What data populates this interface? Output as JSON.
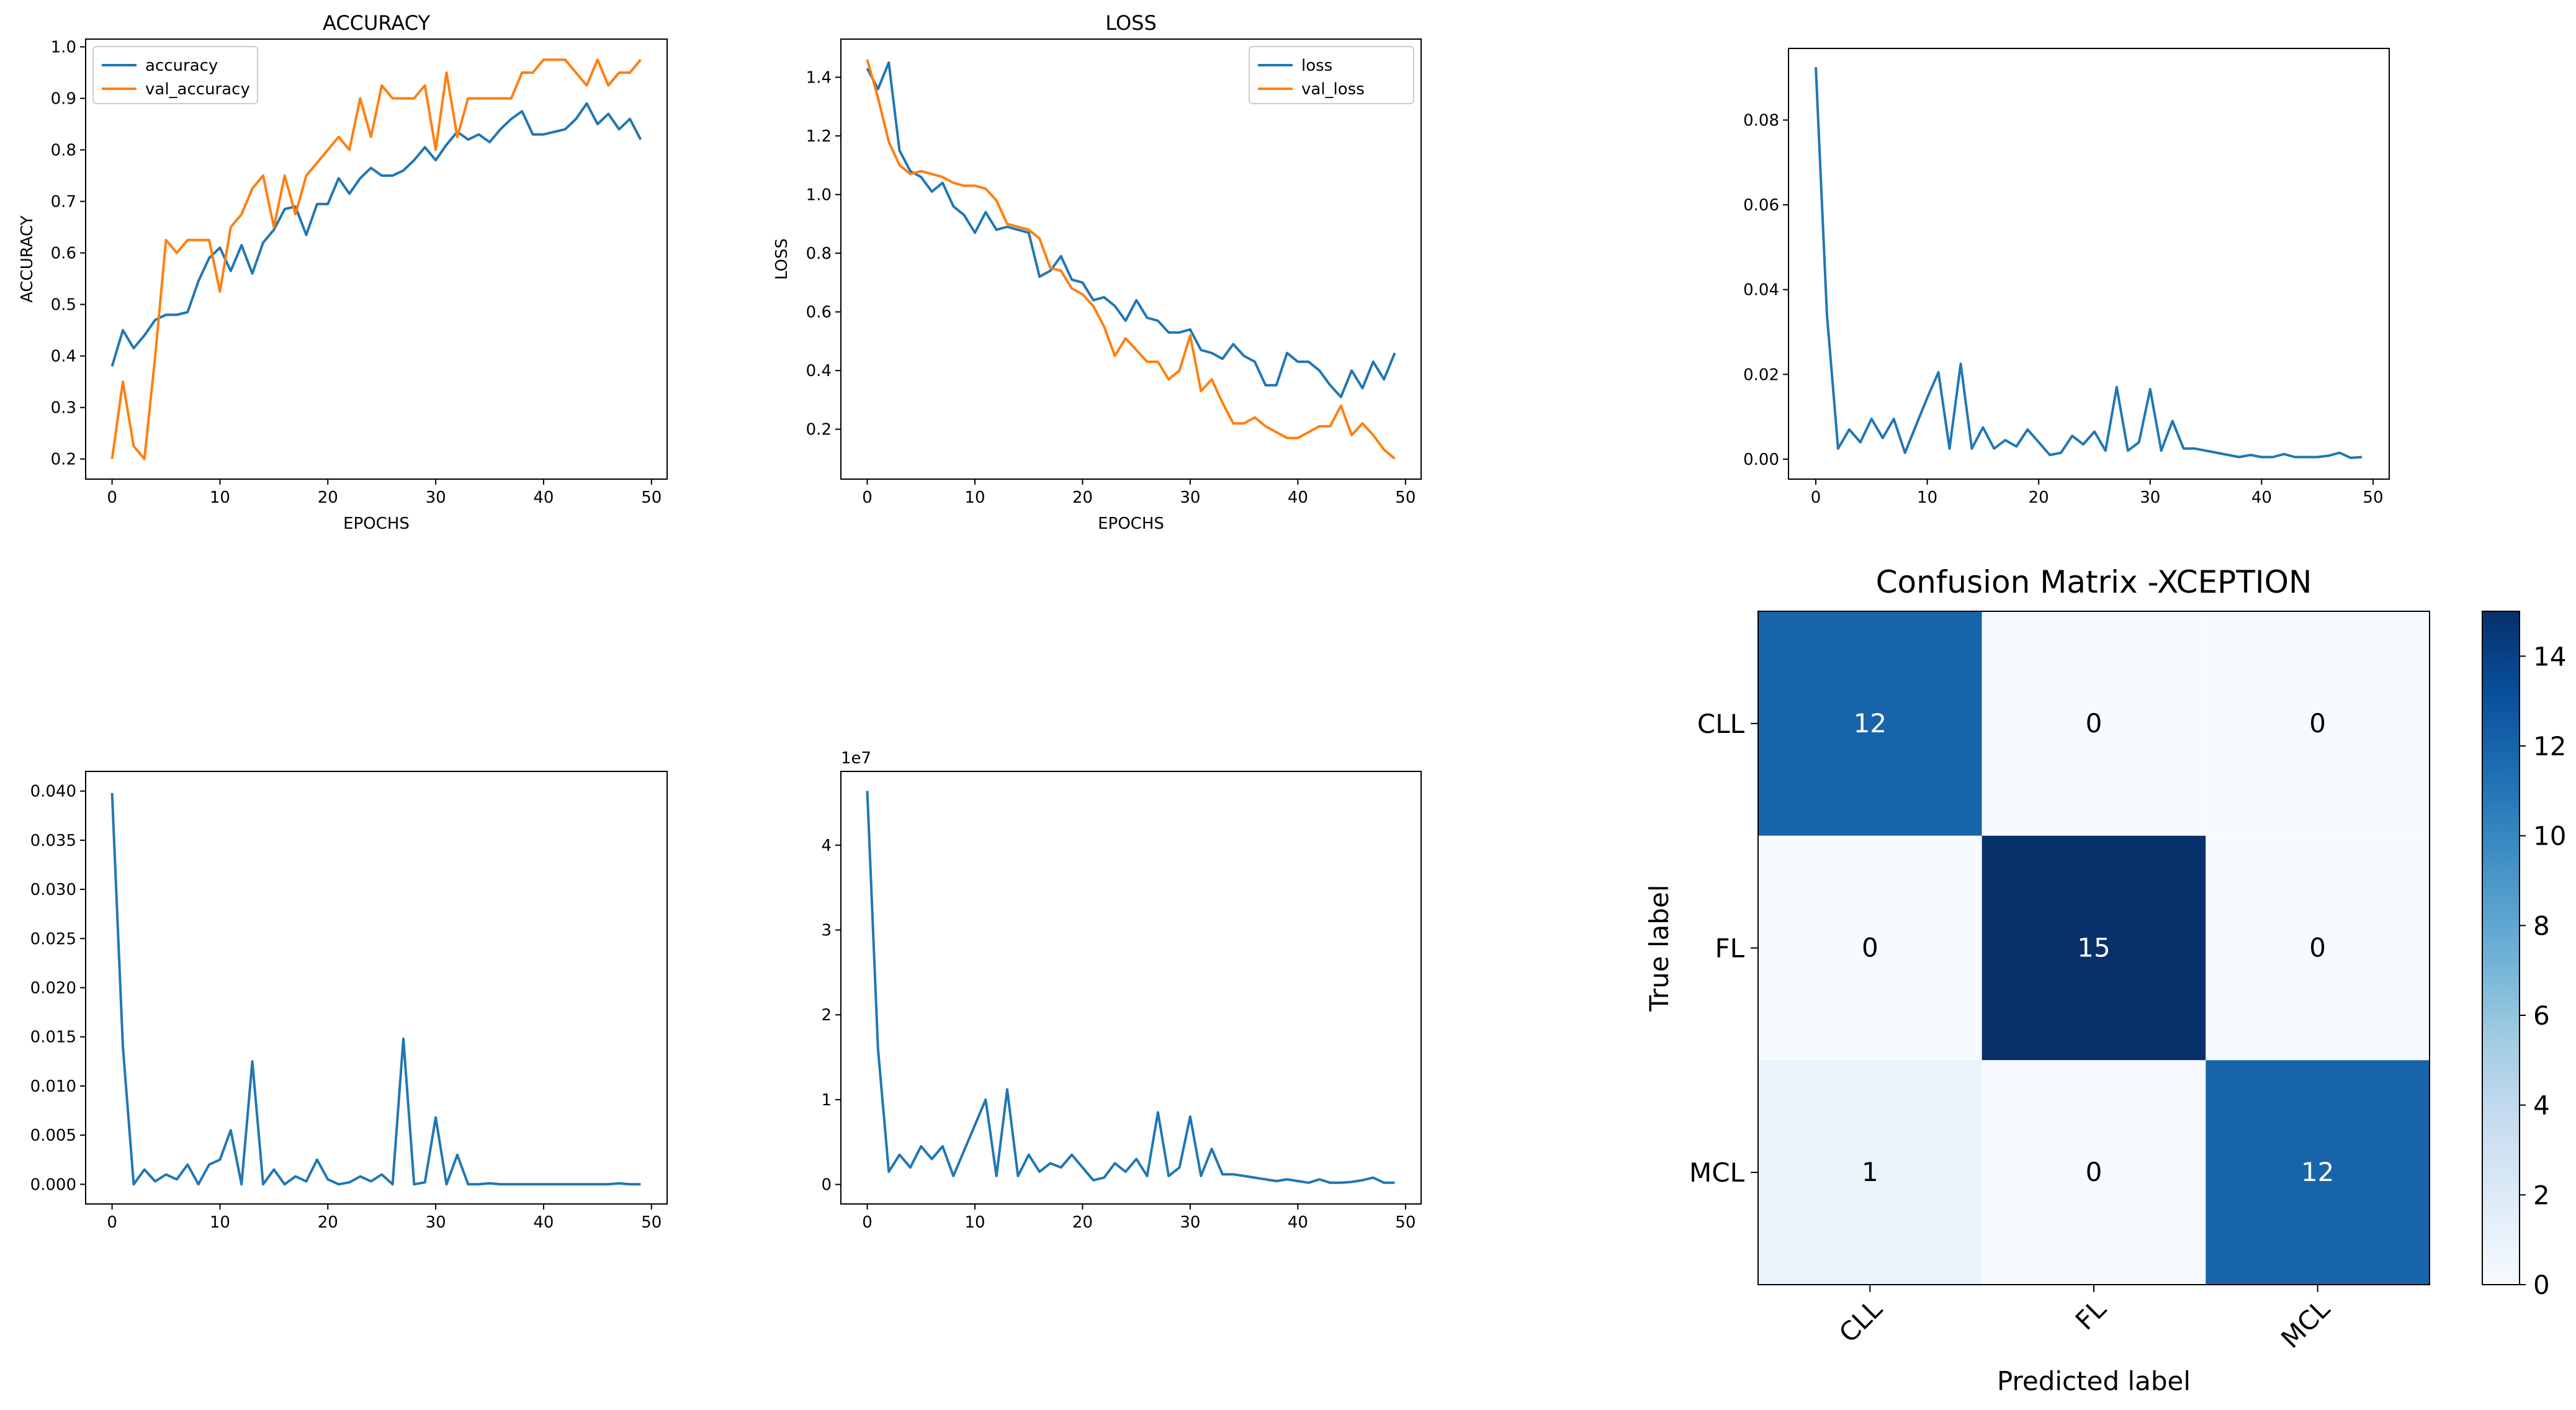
{
  "colors": {
    "blue": "#1f77b4",
    "orange": "#ff7f0e"
  },
  "chart_data": [
    {
      "id": "accuracy",
      "type": "line",
      "title": "ACCURACY",
      "xlabel": "EPOCHS",
      "ylabel": "ACCURACY",
      "xlim": [
        -2.45,
        51.45
      ],
      "ylim": [
        0.161,
        1.015
      ],
      "xticks": [
        0,
        10,
        20,
        30,
        40,
        50
      ],
      "yticks": [
        0.2,
        0.3,
        0.4,
        0.5,
        0.6,
        0.7,
        0.8,
        0.9,
        1.0
      ],
      "ytick_labels": [
        "0.2",
        "0.3",
        "0.4",
        "0.5",
        "0.6",
        "0.7",
        "0.8",
        "0.9",
        "1.0"
      ],
      "legend": "top-left",
      "series": [
        {
          "name": "accuracy",
          "color": "blue",
          "values": [
            0.38,
            0.45,
            0.415,
            0.44,
            0.47,
            0.48,
            0.48,
            0.485,
            0.545,
            0.59,
            0.61,
            0.565,
            0.615,
            0.56,
            0.62,
            0.645,
            0.685,
            0.69,
            0.635,
            0.695,
            0.695,
            0.745,
            0.715,
            0.745,
            0.765,
            0.75,
            0.75,
            0.76,
            0.78,
            0.805,
            0.78,
            0.81,
            0.835,
            0.82,
            0.83,
            0.815,
            0.84,
            0.86,
            0.875,
            0.83,
            0.83,
            0.835,
            0.84,
            0.86,
            0.89,
            0.85,
            0.87,
            0.84,
            0.86,
            0.82
          ]
        },
        {
          "name": "val_accuracy",
          "color": "orange",
          "values": [
            0.2,
            0.35,
            0.225,
            0.2,
            0.4,
            0.625,
            0.6,
            0.625,
            0.625,
            0.625,
            0.525,
            0.65,
            0.675,
            0.725,
            0.75,
            0.65,
            0.75,
            0.675,
            0.75,
            0.775,
            0.8,
            0.825,
            0.8,
            0.9,
            0.825,
            0.925,
            0.9,
            0.9,
            0.9,
            0.925,
            0.8,
            0.95,
            0.825,
            0.9,
            0.9,
            0.9,
            0.9,
            0.9,
            0.95,
            0.95,
            0.975,
            0.975,
            0.975,
            0.95,
            0.925,
            0.975,
            0.925,
            0.95,
            0.95,
            0.975
          ]
        }
      ]
    },
    {
      "id": "loss",
      "type": "line",
      "title": "LOSS",
      "xlabel": "EPOCHS",
      "ylabel": "LOSS",
      "xlim": [
        -2.45,
        51.45
      ],
      "ylim": [
        0.03,
        1.53
      ],
      "xticks": [
        0,
        10,
        20,
        30,
        40,
        50
      ],
      "yticks": [
        0.2,
        0.4,
        0.6,
        0.8,
        1.0,
        1.2,
        1.4
      ],
      "ytick_labels": [
        "0.2",
        "0.4",
        "0.6",
        "0.8",
        "1.0",
        "1.2",
        "1.4"
      ],
      "legend": "top-right",
      "series": [
        {
          "name": "loss",
          "color": "blue",
          "values": [
            1.43,
            1.36,
            1.45,
            1.15,
            1.08,
            1.06,
            1.01,
            1.04,
            0.96,
            0.93,
            0.87,
            0.94,
            0.88,
            0.89,
            0.88,
            0.87,
            0.72,
            0.74,
            0.79,
            0.71,
            0.7,
            0.64,
            0.65,
            0.62,
            0.57,
            0.64,
            0.58,
            0.57,
            0.53,
            0.53,
            0.54,
            0.47,
            0.46,
            0.44,
            0.49,
            0.45,
            0.43,
            0.35,
            0.35,
            0.46,
            0.43,
            0.43,
            0.4,
            0.35,
            0.31,
            0.4,
            0.34,
            0.43,
            0.37,
            0.46
          ]
        },
        {
          "name": "val_loss",
          "color": "orange",
          "values": [
            1.46,
            1.33,
            1.18,
            1.1,
            1.07,
            1.08,
            1.07,
            1.06,
            1.04,
            1.03,
            1.03,
            1.02,
            0.98,
            0.9,
            0.89,
            0.88,
            0.85,
            0.75,
            0.74,
            0.68,
            0.66,
            0.62,
            0.55,
            0.45,
            0.51,
            0.47,
            0.43,
            0.43,
            0.37,
            0.4,
            0.52,
            0.33,
            0.37,
            0.29,
            0.22,
            0.22,
            0.24,
            0.21,
            0.19,
            0.17,
            0.17,
            0.19,
            0.21,
            0.21,
            0.28,
            0.18,
            0.22,
            0.18,
            0.13,
            0.1
          ]
        }
      ]
    },
    {
      "id": "top-right-line",
      "type": "line",
      "title": "",
      "xlabel": "",
      "ylabel": "",
      "xlim": [
        -2.45,
        51.45
      ],
      "ylim": [
        -0.0047,
        0.0969
      ],
      "xticks": [
        0,
        10,
        20,
        30,
        40,
        50
      ],
      "yticks": [
        0,
        0.02,
        0.04,
        0.06,
        0.08
      ],
      "ytick_labels": [
        "0.00",
        "0.02",
        "0.04",
        "0.06",
        "0.08"
      ],
      "series": [
        {
          "name": "series",
          "color": "blue",
          "values": [
            0.0925,
            0.034,
            0.0025,
            0.007,
            0.004,
            0.0095,
            0.005,
            0.0095,
            0.0015,
            0.008,
            0.0145,
            0.0205,
            0.0025,
            0.0225,
            0.0025,
            0.0075,
            0.0025,
            0.0045,
            0.003,
            0.007,
            0.004,
            0.001,
            0.0015,
            0.0055,
            0.0035,
            0.0065,
            0.002,
            0.017,
            0.002,
            0.004,
            0.0165,
            0.002,
            0.009,
            0.0025,
            0.0025,
            0.002,
            0.0015,
            0.001,
            0.0005,
            0.001,
            0.0005,
            0.0005,
            0.0012,
            0.0005,
            0.0005,
            0.0005,
            0.0008,
            0.0015,
            0.0003,
            0.0005
          ]
        }
      ]
    },
    {
      "id": "bottom-left-line",
      "type": "line",
      "title": "",
      "xlabel": "",
      "ylabel": "",
      "xlim": [
        -2.45,
        51.45
      ],
      "ylim": [
        -0.002,
        0.042
      ],
      "xticks": [
        0,
        10,
        20,
        30,
        40,
        50
      ],
      "yticks": [
        0,
        0.005,
        0.01,
        0.015,
        0.02,
        0.025,
        0.03,
        0.035,
        0.04
      ],
      "ytick_labels": [
        "0.000",
        "0.005",
        "0.010",
        "0.015",
        "0.020",
        "0.025",
        "0.030",
        "0.035",
        "0.040"
      ],
      "series": [
        {
          "name": "series",
          "color": "blue",
          "values": [
            0.0398,
            0.014,
            0.0,
            0.0015,
            0.0003,
            0.001,
            0.0005,
            0.002,
            0.0,
            0.002,
            0.0025,
            0.0055,
            0.0,
            0.0125,
            0.0,
            0.0015,
            0.0,
            0.0008,
            0.0003,
            0.0025,
            0.0005,
            0.0,
            0.0002,
            0.0008,
            0.0003,
            0.001,
            0.0,
            0.0148,
            0.0,
            0.0002,
            0.0068,
            0.0,
            0.003,
            0.0,
            0.0,
            0.0001,
            0.0,
            0.0,
            0.0,
            0.0,
            0.0,
            0.0,
            0.0,
            0.0,
            0.0,
            0.0,
            0.0,
            0.0001,
            0.0,
            0.0
          ]
        }
      ]
    },
    {
      "id": "bottom-middle-line",
      "type": "line",
      "title": "",
      "xlabel": "",
      "ylabel": "",
      "offset_label": "1e7",
      "xlim": [
        -2.45,
        51.45
      ],
      "ylim": [
        -0.23,
        4.87
      ],
      "xticks": [
        0,
        10,
        20,
        30,
        40,
        50
      ],
      "yticks": [
        0,
        1,
        2,
        3,
        4
      ],
      "ytick_labels": [
        "0",
        "1",
        "2",
        "3",
        "4"
      ],
      "series": [
        {
          "name": "series",
          "color": "blue",
          "values": [
            4.64,
            1.6,
            0.15,
            0.35,
            0.2,
            0.45,
            0.3,
            0.45,
            0.1,
            0.4,
            0.7,
            1.0,
            0.1,
            1.12,
            0.1,
            0.35,
            0.15,
            0.25,
            0.2,
            0.35,
            0.2,
            0.05,
            0.08,
            0.25,
            0.15,
            0.3,
            0.1,
            0.85,
            0.1,
            0.2,
            0.8,
            0.1,
            0.42,
            0.12,
            0.12,
            0.1,
            0.08,
            0.06,
            0.04,
            0.06,
            0.04,
            0.02,
            0.06,
            0.02,
            0.02,
            0.03,
            0.05,
            0.08,
            0.02,
            0.02
          ]
        }
      ]
    },
    {
      "id": "confusion-matrix",
      "type": "heatmap",
      "title": "Confusion Matrix -XCEPTION",
      "xlabel": "Predicted label",
      "ylabel": "True label",
      "x_categories": [
        "CLL",
        "FL",
        "MCL"
      ],
      "y_categories": [
        "CLL",
        "FL",
        "MCL"
      ],
      "values": [
        [
          12,
          0,
          0
        ],
        [
          0,
          15,
          0
        ],
        [
          1,
          0,
          12
        ]
      ],
      "cell_labels": [
        [
          "12",
          "0",
          "0"
        ],
        [
          "0",
          "15",
          "0"
        ],
        [
          "1",
          "0",
          "12"
        ]
      ],
      "colorscale": "Blues",
      "vmin": 0,
      "vmax": 15,
      "colorbar_ticks": [
        0,
        2,
        4,
        6,
        8,
        10,
        12,
        14
      ],
      "colorbar_tick_labels": [
        "0",
        "2",
        "4",
        "6",
        "8",
        "10",
        "12",
        "14"
      ]
    }
  ]
}
